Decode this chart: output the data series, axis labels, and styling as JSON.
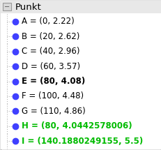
{
  "title": "Punkt",
  "background_color": "#f0f0f0",
  "border_color": "#aaaaaa",
  "items": [
    {
      "label": "A = (0, 2.22)",
      "bold": false,
      "color": "#000000"
    },
    {
      "label": "B = (20, 2.62)",
      "bold": false,
      "color": "#000000"
    },
    {
      "label": "C = (40, 2.96)",
      "bold": false,
      "color": "#000000"
    },
    {
      "label": "D = (60, 3.57)",
      "bold": false,
      "color": "#000000"
    },
    {
      "label": "E = (80, 4.08)",
      "bold": true,
      "color": "#000000"
    },
    {
      "label": "F = (100, 4.48)",
      "bold": false,
      "color": "#000000"
    },
    {
      "label": "G = (110, 4.86)",
      "bold": false,
      "color": "#000000"
    },
    {
      "label": "H = (80, 4.0442578006)",
      "bold": true,
      "color": "#00bb00"
    },
    {
      "label": "I = (140.1880249155, 5.5)",
      "bold": true,
      "color": "#00bb00"
    }
  ],
  "dot_color": "#4040ff",
  "title_fontsize": 9.5,
  "item_fontsize": 8.5,
  "dot_size": 6,
  "minus_box_color": "#d8d8d8",
  "minus_color": "#555555",
  "dotted_line_color": "#aaaaaa"
}
